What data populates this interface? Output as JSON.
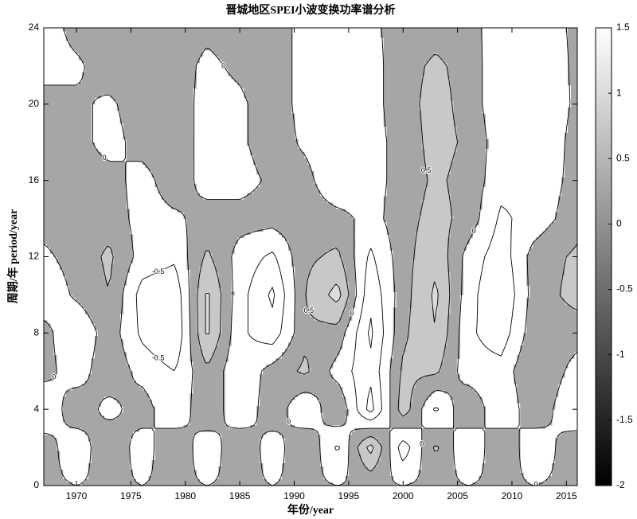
{
  "chart_data": {
    "type": "contour",
    "title": "晋城地区SPEI小波变换功率谱分析",
    "x_label": "年份/year",
    "y_label": "周期/年 period/year",
    "xlim": [
      1967,
      2016
    ],
    "ylim": [
      0,
      24
    ],
    "xticks": [
      1970,
      1975,
      1980,
      1985,
      1990,
      1995,
      2000,
      2005,
      2010,
      2015
    ],
    "yticks": [
      0,
      4,
      8,
      12,
      16,
      20,
      24
    ],
    "x": [
      1967,
      1970,
      1973,
      1976,
      1979,
      1982,
      1985,
      1988,
      1991,
      1994,
      1997,
      2000,
      2003,
      2006,
      2009,
      2012,
      2016
    ],
    "y": [
      0,
      2,
      4,
      6,
      8,
      10,
      12,
      14,
      16,
      18,
      20,
      22,
      24
    ],
    "z": [
      [
        0.1,
        0.0,
        0.1,
        0.0,
        0.1,
        0.0,
        0.1,
        0.0,
        0.1,
        0.0,
        0.1,
        0.0,
        0.1,
        0.0,
        0.1,
        0.0,
        0.1
      ],
      [
        0.3,
        -0.4,
        0.5,
        -0.3,
        0.5,
        -0.4,
        0.5,
        -0.3,
        0.5,
        -0.6,
        1.2,
        -0.8,
        0.6,
        -0.5,
        0.5,
        -0.4,
        0.4
      ],
      [
        -0.5,
        0.4,
        -0.2,
        0.3,
        -0.5,
        0.5,
        -0.5,
        0.4,
        -0.5,
        0.5,
        -1.2,
        0.8,
        -0.6,
        0.5,
        -0.5,
        0.4,
        -0.5
      ],
      [
        0.2,
        -0.3,
        0.4,
        -0.2,
        -0.5,
        0.4,
        -0.4,
        0.2,
        0.6,
        -0.2,
        -0.9,
        0.6,
        0.6,
        -0.3,
        -0.3,
        0.5,
        -0.2
      ],
      [
        0.2,
        -0.5,
        0.3,
        -0.6,
        -1.0,
        1.1,
        -0.4,
        -0.8,
        0.4,
        0.3,
        -1.1,
        0.4,
        1.0,
        -0.4,
        -0.8,
        0.3,
        0.2
      ],
      [
        -0.4,
        0.1,
        0.5,
        -0.7,
        -0.9,
        1.1,
        -0.3,
        -1.1,
        0.5,
        1.2,
        -0.9,
        0.3,
        1.1,
        -0.3,
        -1.0,
        0.2,
        0.7
      ],
      [
        -0.1,
        0.2,
        0.6,
        -0.2,
        -0.4,
        0.6,
        -0.2,
        -0.6,
        0.4,
        0.6,
        -0.6,
        0.3,
        0.9,
        -0.2,
        -0.8,
        0.2,
        0.6
      ],
      [
        0.2,
        0.2,
        0.3,
        -0.2,
        -0.1,
        0.2,
        0.2,
        0.2,
        0.3,
        0.2,
        -0.2,
        0.3,
        0.7,
        0.3,
        -0.6,
        -0.3,
        0.3
      ],
      [
        0.2,
        0.2,
        0.2,
        -0.2,
        0.3,
        -0.2,
        -0.2,
        0.1,
        0.2,
        -0.5,
        -0.2,
        0.2,
        0.6,
        0.3,
        -0.3,
        -0.4,
        0.2
      ],
      [
        0.2,
        0.2,
        -0.2,
        0.2,
        0.3,
        -0.2,
        -0.1,
        0.3,
        -0.1,
        -0.5,
        -0.2,
        0.2,
        0.7,
        0.4,
        -0.3,
        -0.5,
        0.2
      ],
      [
        0.2,
        0.1,
        -0.1,
        0.3,
        0.3,
        -0.2,
        -0.1,
        0.3,
        -0.2,
        -0.3,
        -0.2,
        0.3,
        0.7,
        0.3,
        -0.4,
        -0.5,
        0.1
      ],
      [
        -0.2,
        -0.1,
        0.3,
        0.3,
        0.2,
        -0.1,
        0.1,
        0.3,
        -0.2,
        -0.3,
        -0.2,
        0.3,
        0.6,
        0.3,
        -0.4,
        -0.4,
        0.1
      ],
      [
        -0.3,
        0.2,
        0.3,
        0.3,
        0.2,
        0.1,
        0.2,
        0.3,
        -0.2,
        -0.2,
        -0.1,
        0.2,
        0.3,
        0.2,
        -0.3,
        -0.3,
        0.1
      ]
    ],
    "levels": [
      -1,
      -0.5,
      0,
      0.5,
      1
    ],
    "fill_colors": [
      "#ffffff",
      "#ffffff",
      "#ffffff",
      "#a6a6a6",
      "#c8c8c8",
      "#dcdcdc"
    ],
    "clim": [
      -2,
      1.5
    ],
    "cticks": [
      -2,
      -1.5,
      -1,
      -0.5,
      0,
      0.5,
      1,
      1.5
    ],
    "colorbar_colors": [
      "#000000",
      "#ffffff"
    ]
  }
}
